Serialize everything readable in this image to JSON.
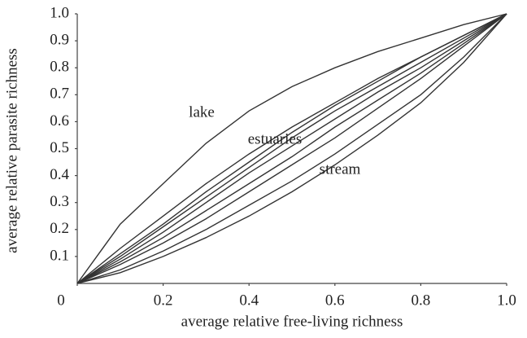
{
  "chart_data": {
    "type": "line",
    "xlabel": "average relative free-living richness",
    "ylabel": "average relative parasite richness",
    "annotations": [
      "lake",
      "estuaries",
      "stream"
    ],
    "x": [
      0,
      0.1,
      0.2,
      0.3,
      0.4,
      0.5,
      0.6,
      0.7,
      0.8,
      0.9,
      1
    ],
    "series": [
      {
        "color": "#333333",
        "values": [
          0,
          0.22,
          0.37,
          0.52,
          0.64,
          0.73,
          0.8,
          0.86,
          0.91,
          0.96,
          1
        ]
      },
      {
        "color": "#333333",
        "values": [
          0,
          0.13,
          0.25,
          0.37,
          0.48,
          0.58,
          0.67,
          0.76,
          0.84,
          0.92,
          1
        ]
      },
      {
        "color": "#333333",
        "values": [
          0,
          0.11,
          0.22,
          0.34,
          0.45,
          0.56,
          0.66,
          0.75,
          0.84,
          0.92,
          1
        ]
      },
      {
        "color": "#333333",
        "values": [
          0,
          0.1,
          0.21,
          0.32,
          0.43,
          0.54,
          0.64,
          0.73,
          0.82,
          0.91,
          1
        ]
      },
      {
        "color": "#333333",
        "values": [
          0,
          0.09,
          0.19,
          0.3,
          0.41,
          0.51,
          0.61,
          0.71,
          0.8,
          0.9,
          1
        ]
      },
      {
        "color": "#333333",
        "values": [
          0,
          0.08,
          0.17,
          0.27,
          0.37,
          0.47,
          0.58,
          0.68,
          0.78,
          0.89,
          1
        ]
      },
      {
        "color": "#333333",
        "values": [
          0,
          0.07,
          0.15,
          0.24,
          0.34,
          0.44,
          0.54,
          0.65,
          0.76,
          0.88,
          1
        ]
      },
      {
        "color": "#333333",
        "values": [
          0,
          0.05,
          0.12,
          0.2,
          0.29,
          0.38,
          0.48,
          0.59,
          0.7,
          0.84,
          1
        ]
      },
      {
        "color": "#333333",
        "values": [
          0,
          0.04,
          0.1,
          0.17,
          0.25,
          0.34,
          0.44,
          0.55,
          0.67,
          0.82,
          1
        ]
      }
    ],
    "xlim": [
      0,
      1
    ],
    "ylim": [
      0,
      1
    ],
    "xticks": [
      0,
      0.2,
      0.4,
      0.6,
      0.8,
      {
        "value": 1,
        "label": "1.0"
      }
    ],
    "yticks": [
      0.1,
      0.2,
      0.3,
      0.4,
      0.5,
      0.6,
      0.7,
      0.8,
      0.9,
      {
        "value": 1,
        "label": "1.0"
      }
    ],
    "grid": false
  }
}
